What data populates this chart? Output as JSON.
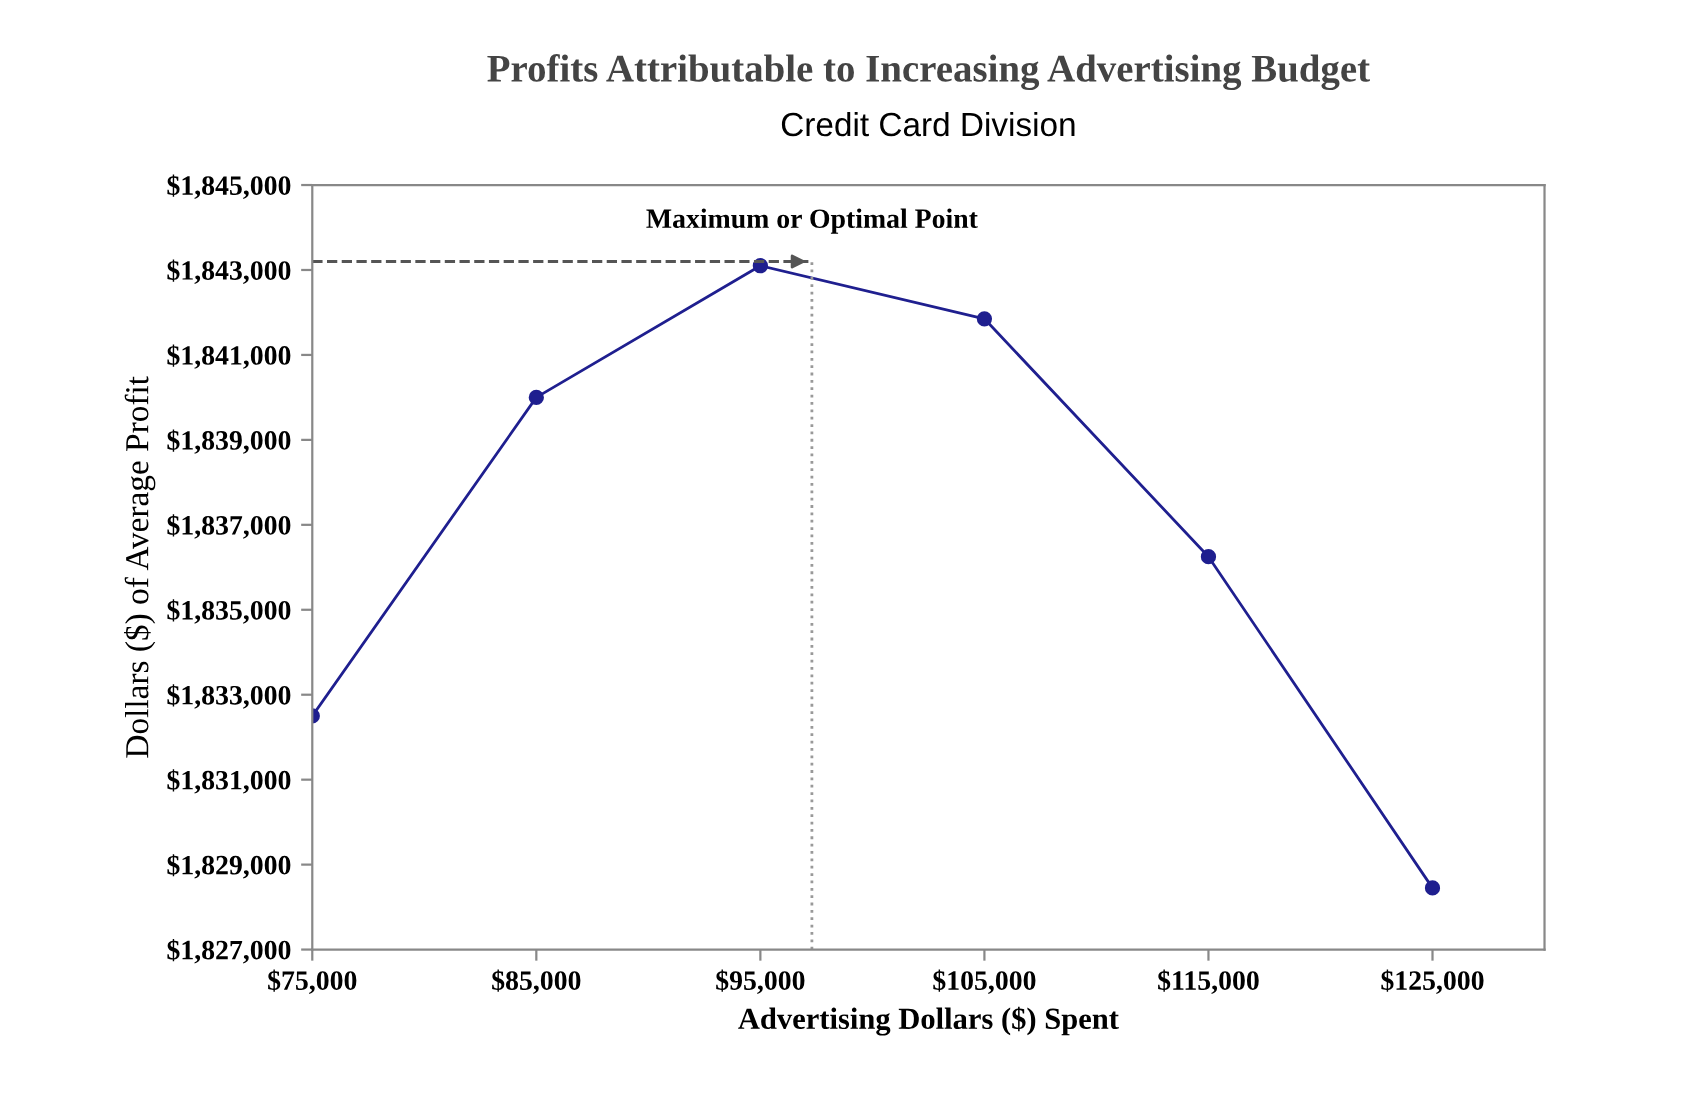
{
  "chart_data": {
    "type": "line",
    "title": "Profits Attributable to Increasing Advertising Budget",
    "subtitle": "Credit Card Division",
    "xlabel": "Advertising Dollars ($) Spent",
    "ylabel": "Dollars ($) of Average Profit",
    "x": [
      75000,
      85000,
      95000,
      105000,
      115000,
      125000
    ],
    "series": [
      {
        "color": "#1f1f8f",
        "values": [
          1832500,
          1840000,
          1843100,
          1841850,
          1836250,
          1828450
        ]
      }
    ],
    "marker": "circle",
    "line_style": "solid",
    "grid": false,
    "legend": false,
    "xlim": [
      75000,
      130000
    ],
    "xticks": [
      {
        "value": 75000,
        "label": "$75,000"
      },
      {
        "value": 85000,
        "label": "$85,000"
      },
      {
        "value": 95000,
        "label": "$95,000"
      },
      {
        "value": 105000,
        "label": "$105,000"
      },
      {
        "value": 115000,
        "label": "$115,000"
      },
      {
        "value": 125000,
        "label": "$125,000"
      }
    ],
    "ylim": [
      1827000,
      1845000
    ],
    "yticks": [
      {
        "value": 1827000,
        "label": "$1,827,000"
      },
      {
        "value": 1829000,
        "label": "$1,829,000"
      },
      {
        "value": 1831000,
        "label": "$1,831,000"
      },
      {
        "value": 1833000,
        "label": "$1,833,000"
      },
      {
        "value": 1835000,
        "label": "$1,835,000"
      },
      {
        "value": 1837000,
        "label": "$1,837,000"
      },
      {
        "value": 1839000,
        "label": "$1,839,000"
      },
      {
        "value": 1841000,
        "label": "$1,841,000"
      },
      {
        "value": 1843000,
        "label": "$1,843,000"
      },
      {
        "value": 1845000,
        "label": "$1,845,000"
      }
    ],
    "ref_lines": [
      {
        "axis": "x",
        "value": 97300,
        "color": "#999999",
        "line_style": "dotted"
      },
      {
        "axis": "y",
        "value": 1843200,
        "color": "#555555",
        "line_style": "dashed"
      }
    ],
    "annotations": [
      {
        "text": "Maximum or Optimal Point",
        "x": 97300,
        "y": 1843200
      }
    ]
  }
}
